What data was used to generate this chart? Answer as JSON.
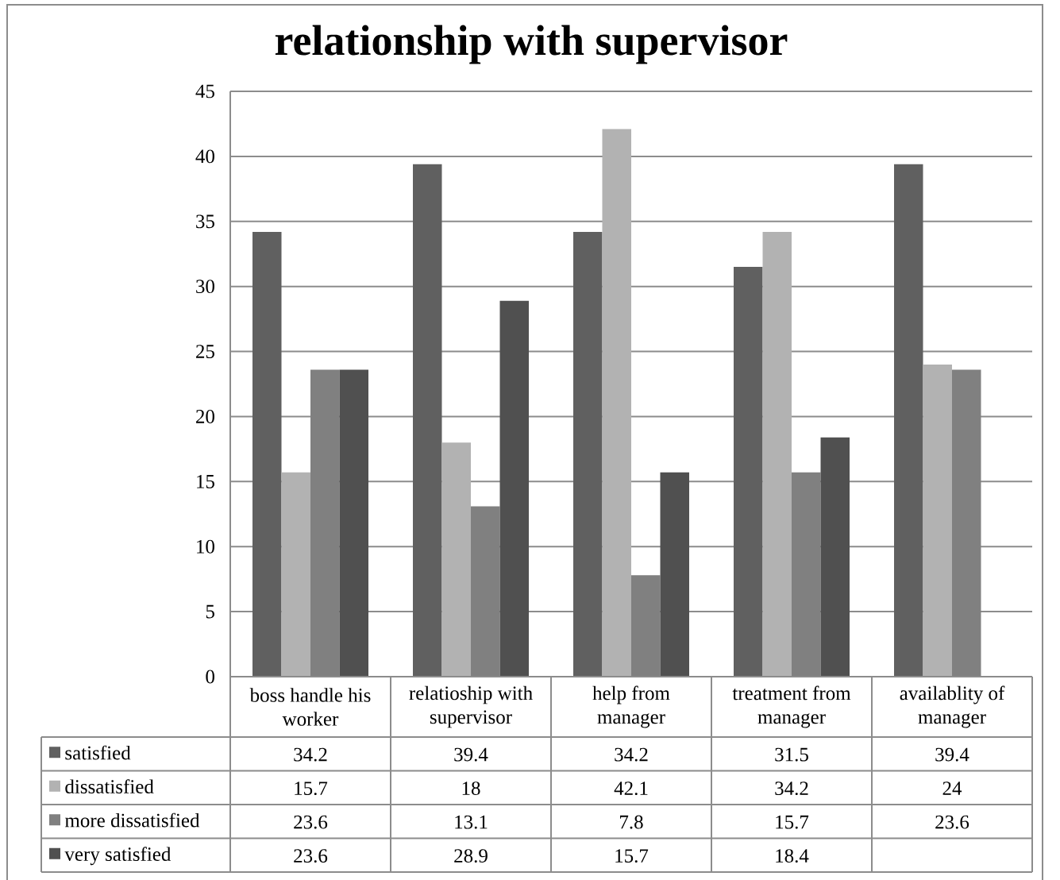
{
  "chart_data": {
    "type": "bar",
    "title": "relationship with supervisor",
    "categories": [
      "boss handle his worker",
      "relatioship with supervisor",
      "help from manager",
      "treatment from manager",
      "availablity of manager"
    ],
    "series": [
      {
        "name": "satisfied",
        "color": "#606060",
        "values": [
          34.2,
          39.4,
          34.2,
          31.5,
          39.4
        ]
      },
      {
        "name": "dissatisfied",
        "color": "#b2b2b2",
        "values": [
          15.7,
          18,
          42.1,
          34.2,
          24
        ]
      },
      {
        "name": "more dissatisfied",
        "color": "#808080",
        "values": [
          23.6,
          13.1,
          7.8,
          15.7,
          23.6
        ]
      },
      {
        "name": "very satisfied",
        "color": "#505050",
        "values": [
          23.6,
          28.9,
          15.7,
          18.4,
          null
        ]
      }
    ],
    "ylim": [
      0,
      45
    ],
    "yticks": [
      0,
      5,
      10,
      15,
      20,
      25,
      30,
      35,
      40,
      45
    ],
    "grid": "y",
    "legend": "bottom",
    "data_labels": true
  }
}
